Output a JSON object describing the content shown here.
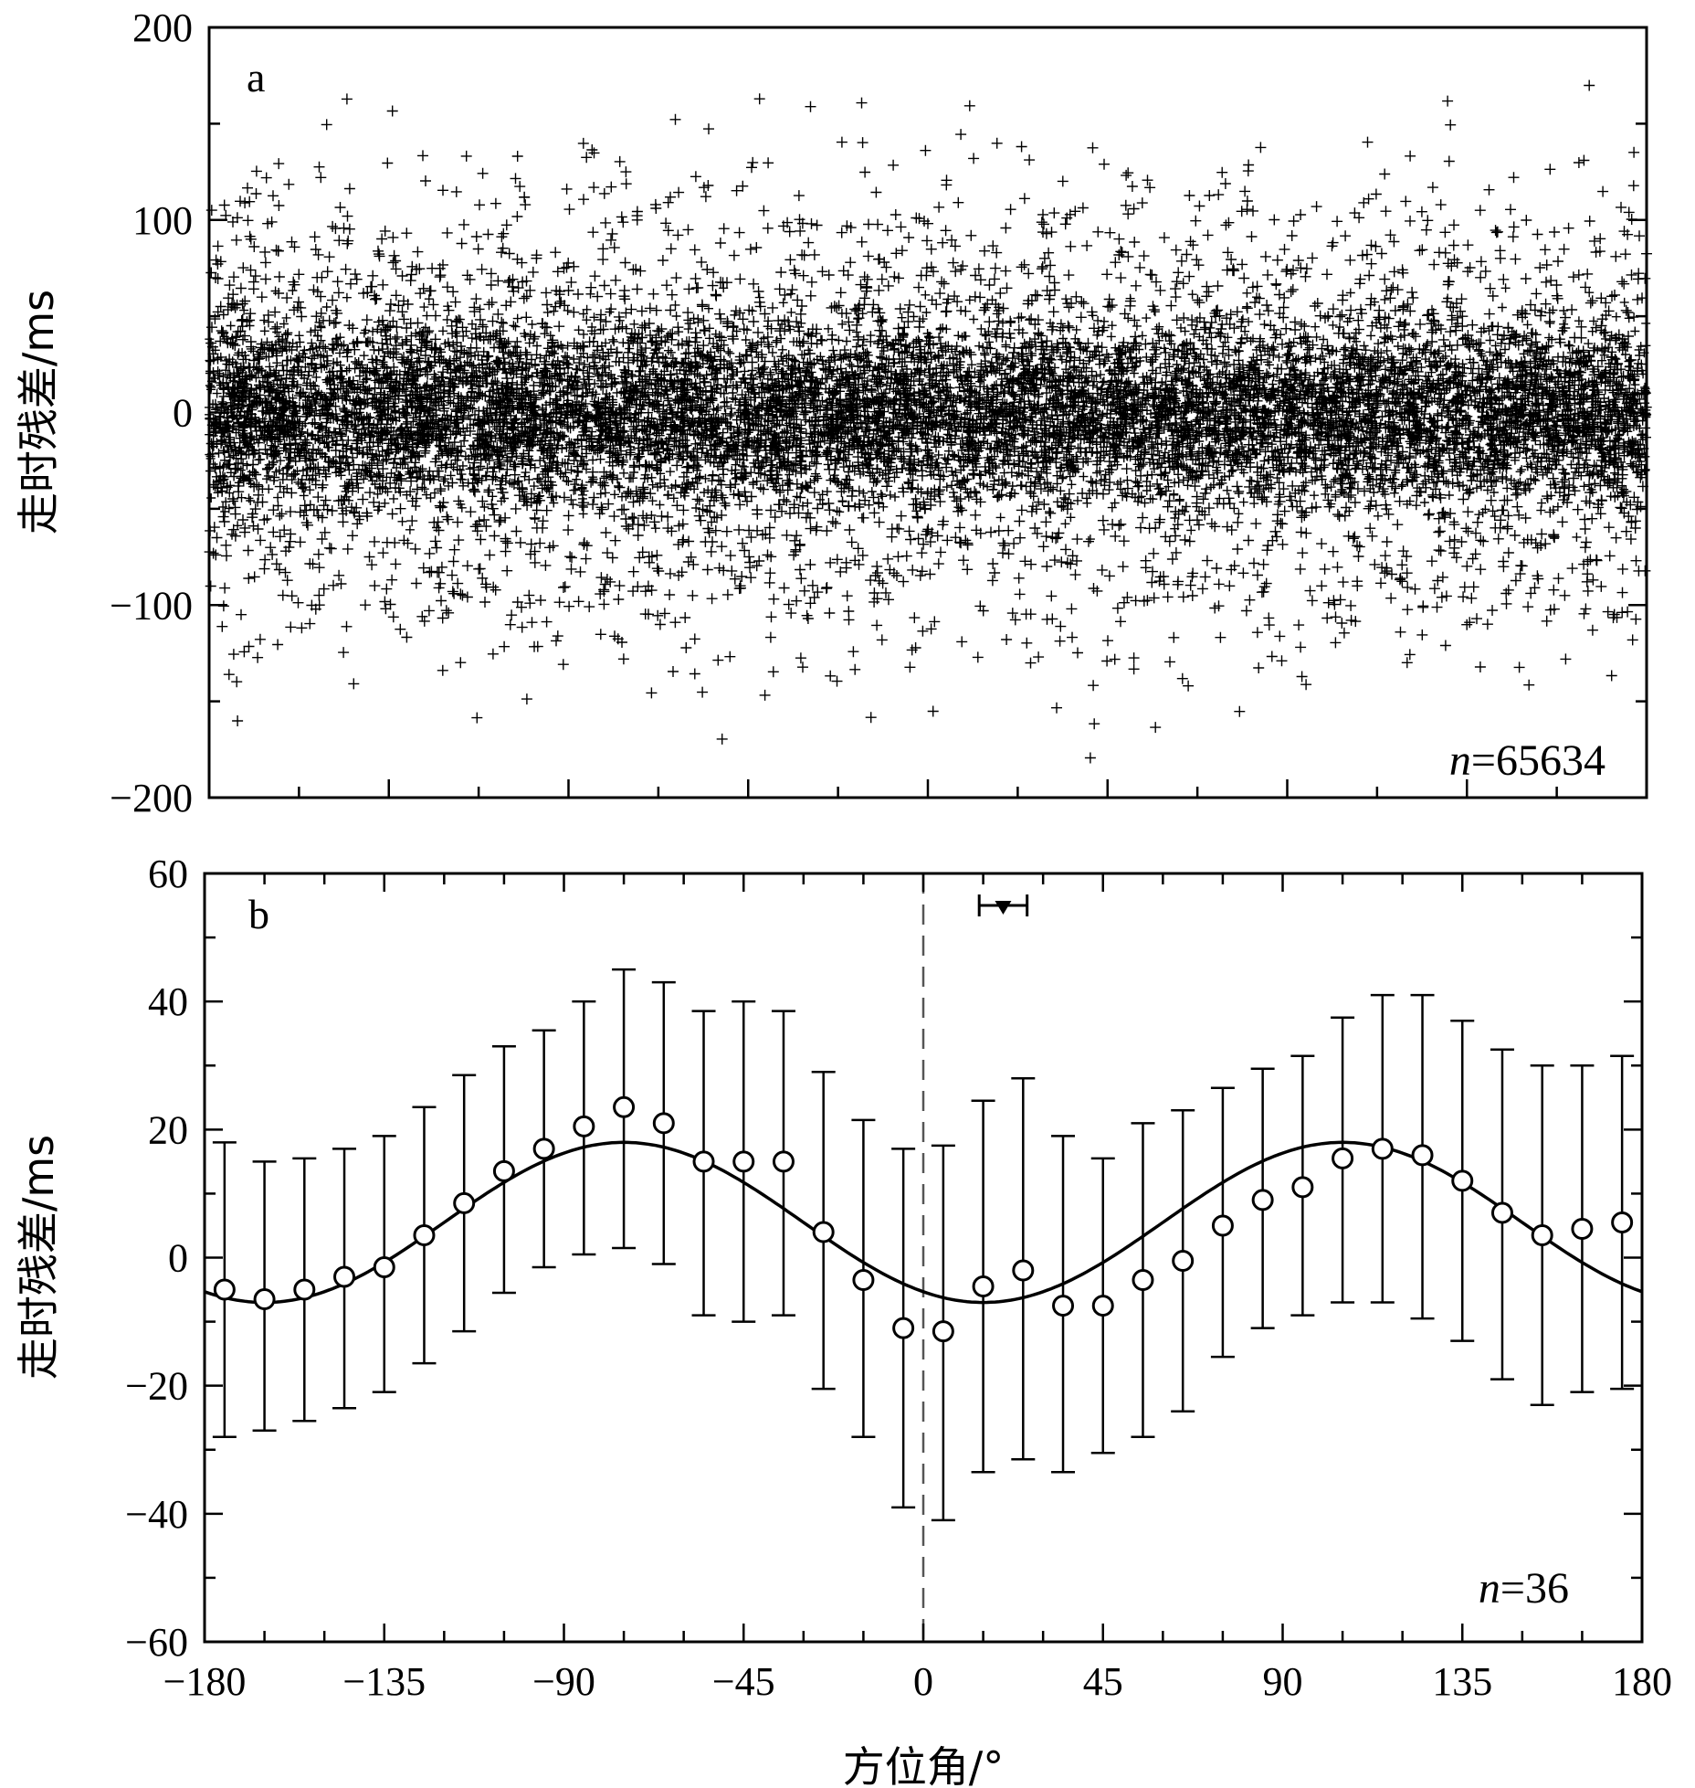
{
  "chart_data": [
    {
      "panel_label": "a",
      "type": "scatter",
      "marker": "plus",
      "ylabel": "走时残差/ms",
      "xlim": [
        -180,
        180
      ],
      "ylim": [
        -200,
        200
      ],
      "yticks": [
        "200",
        "100",
        "0",
        "−100",
        "−200"
      ],
      "ytick_values": [
        200,
        100,
        0,
        -100,
        -200
      ],
      "count_label": {
        "italic": "n",
        "rest": "=65634"
      },
      "point_cloud": {
        "description_of_distribution": "dense band of points",
        "core_range_ms": [
          -60,
          60
        ],
        "extent_ms": [
          -200,
          200
        ]
      }
    },
    {
      "panel_label": "b",
      "type": "scatter",
      "marker": "open-circle",
      "ylabel": "走时残差/ms",
      "xlabel": "方位角/°",
      "xlim": [
        -180,
        180
      ],
      "ylim": [
        -60,
        60
      ],
      "xticks": [
        "−180",
        "−135",
        "−90",
        "−45",
        "0",
        "45",
        "90",
        "135",
        "180"
      ],
      "xtick_values": [
        -180,
        -135,
        -90,
        -45,
        0,
        45,
        90,
        135,
        180
      ],
      "yticks": [
        "60",
        "40",
        "20",
        "0",
        "−20",
        "−40",
        "−60"
      ],
      "ytick_values": [
        60,
        40,
        20,
        0,
        -20,
        -40,
        -60
      ],
      "count_label": {
        "italic": "n",
        "rest": "=36"
      },
      "x": [
        -175,
        -165,
        -155,
        -145,
        -135,
        -125,
        -115,
        -105,
        -95,
        -85,
        -75,
        -65,
        -55,
        -45,
        -35,
        -25,
        -15,
        -5,
        5,
        15,
        25,
        35,
        45,
        55,
        65,
        75,
        85,
        95,
        105,
        115,
        125,
        135,
        145,
        155,
        165,
        175
      ],
      "y": [
        -5,
        -6.5,
        -5,
        -3,
        -1.5,
        3.5,
        8.5,
        13.5,
        17,
        20.5,
        23.5,
        21,
        15,
        15,
        15,
        4,
        -3.5,
        -11,
        -11.5,
        -4.5,
        -2,
        -7.5,
        -7.5,
        -3.5,
        -0.5,
        5,
        9,
        11,
        15.5,
        17,
        16,
        12,
        7,
        3.5,
        4.5,
        5.5
      ],
      "y_upper": [
        18,
        15,
        15.5,
        17,
        19,
        23.5,
        28.5,
        33,
        35.5,
        40,
        45,
        43,
        38.5,
        40,
        38.5,
        29,
        21.5,
        17,
        17.5,
        24.5,
        28,
        19,
        15.5,
        21,
        23,
        26.5,
        29.5,
        31.5,
        37.5,
        41,
        41,
        37,
        32.5,
        30,
        30,
        31.5
      ],
      "y_lower": [
        -28,
        -27,
        -25.5,
        -23.5,
        -21,
        -16.5,
        -11.5,
        -5.5,
        -1.5,
        0.5,
        1.5,
        -1,
        -9,
        -10,
        -9,
        -20.5,
        -28,
        -39,
        -41,
        -33.5,
        -31.5,
        -33.5,
        -30.5,
        -28,
        -24,
        -15.5,
        -11,
        -9,
        -7,
        -7,
        -9.5,
        -13,
        -19,
        -23,
        -21,
        -20.5
      ],
      "fit_curve": {
        "type": "line",
        "style": "solid",
        "mean": 5.5,
        "amplitude": 12.5,
        "period_deg": 180,
        "peak_at_deg": -75
      },
      "reference_line": {
        "x": 0,
        "style": "dashed"
      },
      "marker_symbol": {
        "x": 20,
        "y": 55,
        "x_err": 6,
        "shape": "filled-down-triangle"
      }
    }
  ]
}
